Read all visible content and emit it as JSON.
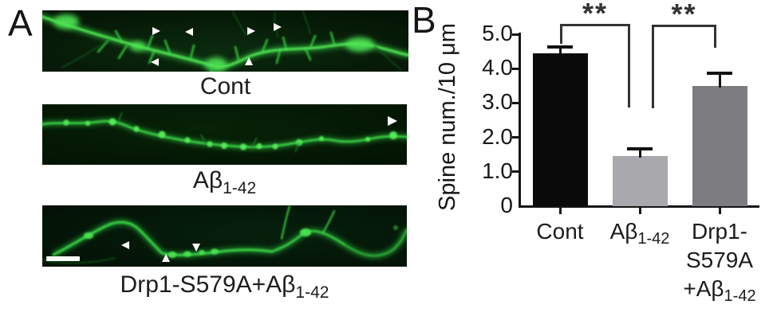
{
  "panel_a": {
    "label": "A",
    "micrographs": [
      {
        "name": "cont",
        "caption_main": "Cont",
        "caption_sub": ""
      },
      {
        "name": "abeta-1-42",
        "caption_main": "Aβ",
        "caption_sub": "1-42"
      },
      {
        "name": "drp1-s579a-abeta-1-42",
        "caption_main": "Drp1-S579A+Aβ",
        "caption_sub": "1-42"
      }
    ]
  },
  "panel_b": {
    "label": "B"
  },
  "chart_data": {
    "type": "bar",
    "title": "",
    "xlabel": "",
    "ylabel": "Spine num./10 μm",
    "categories": [
      "Cont",
      "Aβ1-42",
      "Drp1-S579A+Aβ1-42"
    ],
    "values": [
      4.45,
      1.45,
      3.5
    ],
    "errors_plus": [
      0.2,
      0.25,
      0.4
    ],
    "bar_colors": [
      "#0a0a0a",
      "#a9a9ad",
      "#7d7d81"
    ],
    "ylim": [
      0,
      5
    ],
    "ytick_labels": [
      "0",
      "1.0",
      "2.0",
      "3.0",
      "4.0",
      "5.0"
    ],
    "grid": false,
    "legend": null,
    "significance_brackets": [
      {
        "groups": [
          "Cont",
          "Aβ1-42"
        ],
        "label": "**"
      },
      {
        "groups": [
          "Aβ1-42",
          "Drp1-S579A+Aβ1-42"
        ],
        "label": "**"
      }
    ],
    "categories_rich": [
      {
        "lines": [
          {
            "text": "Cont",
            "sub": ""
          }
        ]
      },
      {
        "lines": [
          {
            "text": "Aβ",
            "sub": "1-42"
          }
        ]
      },
      {
        "lines": [
          {
            "text": "Drp1-",
            "sub": ""
          },
          {
            "text": "S579A",
            "sub": ""
          },
          {
            "text": "+Aβ",
            "sub": "1-42"
          }
        ]
      }
    ]
  }
}
